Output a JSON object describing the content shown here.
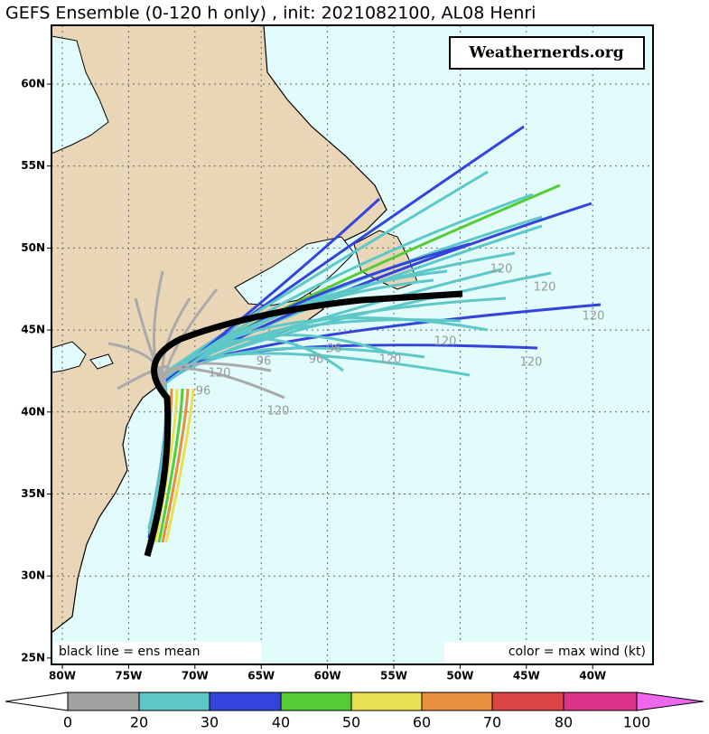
{
  "header": {
    "title": "GEFS Ensemble (0-120 h only) , init: 2021082100, AL08 Henri"
  },
  "watermark": "Weathernerds.org",
  "map": {
    "lat_labels": [
      "60N",
      "55N",
      "50N",
      "45N",
      "40N",
      "35N",
      "30N",
      "25N"
    ],
    "lon_labels": [
      "80W",
      "75W",
      "70W",
      "65W",
      "60W",
      "55W",
      "50W",
      "45W",
      "40W"
    ],
    "track_labels": [
      "120",
      "120",
      "120",
      "120",
      "120",
      "120",
      "120",
      "120",
      "96",
      "96",
      "96",
      "96"
    ]
  },
  "notes": {
    "left": "black line = ens mean",
    "right": "color = max wind (kt)"
  },
  "colorbar": {
    "labels": [
      "0",
      "20",
      "30",
      "40",
      "50",
      "60",
      "70",
      "80",
      "100"
    ]
  }
}
